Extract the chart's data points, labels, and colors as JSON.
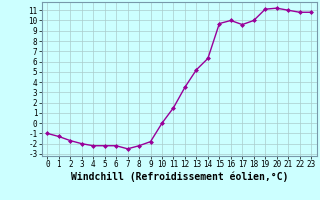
{
  "x": [
    0,
    1,
    2,
    3,
    4,
    5,
    6,
    7,
    8,
    9,
    10,
    11,
    12,
    13,
    14,
    15,
    16,
    17,
    18,
    19,
    20,
    21,
    22,
    23
  ],
  "y": [
    -1,
    -1.3,
    -1.7,
    -2.0,
    -2.2,
    -2.2,
    -2.2,
    -2.5,
    -2.2,
    -1.8,
    0.0,
    1.5,
    3.5,
    5.2,
    6.3,
    9.7,
    10.0,
    9.6,
    10.0,
    11.1,
    11.2,
    11.0,
    10.8,
    10.8
  ],
  "line_color": "#990099",
  "marker": "D",
  "marker_size": 2.0,
  "bg_color": "#ccffff",
  "grid_color": "#aacccc",
  "xlabel": "Windchill (Refroidissement éolien,°C)",
  "xlim": [
    -0.5,
    23.5
  ],
  "ylim": [
    -3.2,
    11.8
  ],
  "yticks": [
    -3,
    -2,
    -1,
    0,
    1,
    2,
    3,
    4,
    5,
    6,
    7,
    8,
    9,
    10,
    11
  ],
  "xticks": [
    0,
    1,
    2,
    3,
    4,
    5,
    6,
    7,
    8,
    9,
    10,
    11,
    12,
    13,
    14,
    15,
    16,
    17,
    18,
    19,
    20,
    21,
    22,
    23
  ],
  "tick_label_fontsize": 5.5,
  "xlabel_fontsize": 7.0,
  "line_width": 1.0
}
